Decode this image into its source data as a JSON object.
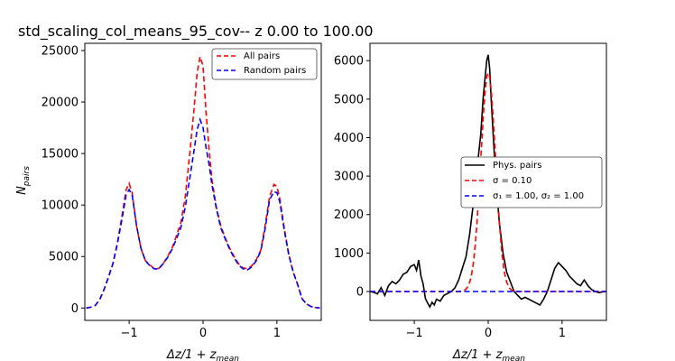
{
  "figure_title": "std_scaling_col_means_95_cov-- z 0.00 to 100.00",
  "chart_data": [
    {
      "type": "line",
      "panel": "left",
      "xlabel_tex": [
        "Δz/1 + z",
        "mean"
      ],
      "ylabel_tex": [
        "N",
        "pairs"
      ],
      "xlim": [
        -1.6,
        1.6
      ],
      "ylim": [
        -1200,
        25700
      ],
      "xticks": [
        -1,
        0,
        1
      ],
      "yticks": [
        0,
        5000,
        10000,
        15000,
        20000,
        25000
      ],
      "legend_loc": "upper right",
      "grid": false,
      "x": [
        -1.58,
        -1.52,
        -1.46,
        -1.4,
        -1.34,
        -1.28,
        -1.22,
        -1.16,
        -1.1,
        -1.04,
        -1.0,
        -0.96,
        -0.9,
        -0.84,
        -0.78,
        -0.72,
        -0.66,
        -0.6,
        -0.54,
        -0.48,
        -0.42,
        -0.36,
        -0.3,
        -0.24,
        -0.18,
        -0.12,
        -0.08,
        -0.04,
        0.0,
        0.04,
        0.08,
        0.12,
        0.18,
        0.24,
        0.3,
        0.36,
        0.42,
        0.48,
        0.54,
        0.6,
        0.66,
        0.72,
        0.78,
        0.84,
        0.9,
        0.96,
        1.0,
        1.04,
        1.1,
        1.16,
        1.22,
        1.28,
        1.34,
        1.4,
        1.46,
        1.52,
        1.58
      ],
      "series": [
        {
          "name": "All pairs",
          "color": "#ff0000",
          "dash": "dashed",
          "values": [
            0,
            80,
            250,
            800,
            1800,
            3000,
            4300,
            6300,
            8800,
            11500,
            12100,
            11200,
            8000,
            5800,
            4600,
            4200,
            3800,
            3850,
            4300,
            5000,
            5800,
            7000,
            8300,
            10800,
            15000,
            19500,
            22800,
            24400,
            23500,
            19000,
            15500,
            12500,
            9800,
            8000,
            6800,
            5800,
            5000,
            4300,
            3900,
            3800,
            4100,
            4700,
            5600,
            8000,
            10800,
            12000,
            11800,
            10600,
            7700,
            5200,
            3500,
            2300,
            900,
            400,
            150,
            50,
            0
          ]
        },
        {
          "name": "Random pairs",
          "color": "#0000ff",
          "dash": "dashed",
          "values": [
            0,
            80,
            250,
            800,
            1800,
            3000,
            4300,
            6200,
            8500,
            11000,
            11500,
            11000,
            8000,
            5800,
            4600,
            4100,
            3800,
            3800,
            4300,
            4900,
            5700,
            6700,
            7800,
            9800,
            12600,
            15400,
            17300,
            18300,
            17500,
            15600,
            14000,
            12000,
            9700,
            7800,
            6700,
            5700,
            4900,
            4200,
            3800,
            3700,
            4000,
            4600,
            5500,
            7700,
            10500,
            11300,
            11200,
            10300,
            7500,
            5200,
            3500,
            2300,
            900,
            400,
            150,
            50,
            0
          ]
        }
      ]
    },
    {
      "type": "line",
      "panel": "right",
      "xlabel_tex": [
        "Δz/1 + z",
        "mean"
      ],
      "xlim": [
        -1.6,
        1.6
      ],
      "ylim": [
        -750,
        6450
      ],
      "xticks": [
        -1,
        0,
        1
      ],
      "yticks": [
        0,
        1000,
        2000,
        3000,
        4000,
        5000,
        6000
      ],
      "legend_loc": "center right",
      "grid": false,
      "series": [
        {
          "name": "Phys. pairs",
          "color": "#000000",
          "dash": "solid",
          "x": [
            -1.6,
            -1.55,
            -1.5,
            -1.45,
            -1.4,
            -1.35,
            -1.3,
            -1.25,
            -1.2,
            -1.15,
            -1.1,
            -1.05,
            -1.0,
            -0.97,
            -0.94,
            -0.91,
            -0.88,
            -0.85,
            -0.82,
            -0.79,
            -0.76,
            -0.73,
            -0.7,
            -0.65,
            -0.6,
            -0.55,
            -0.5,
            -0.45,
            -0.4,
            -0.35,
            -0.3,
            -0.25,
            -0.2,
            -0.15,
            -0.1,
            -0.07,
            -0.04,
            -0.02,
            0.0,
            0.02,
            0.04,
            0.07,
            0.1,
            0.15,
            0.2,
            0.25,
            0.3,
            0.35,
            0.4,
            0.45,
            0.5,
            0.55,
            0.6,
            0.65,
            0.7,
            0.75,
            0.8,
            0.85,
            0.9,
            0.95,
            1.0,
            1.05,
            1.1,
            1.15,
            1.2,
            1.25,
            1.3,
            1.35,
            1.4,
            1.45,
            1.5,
            1.55,
            1.6
          ],
          "values": [
            0,
            -20,
            -60,
            100,
            -100,
            150,
            260,
            200,
            300,
            450,
            500,
            650,
            700,
            550,
            820,
            400,
            200,
            -180,
            -300,
            -400,
            -280,
            -350,
            -200,
            -250,
            -100,
            -50,
            0,
            100,
            300,
            600,
            900,
            1500,
            2300,
            3200,
            4100,
            5000,
            5600,
            6000,
            6150,
            5800,
            5000,
            4000,
            3000,
            1800,
            1000,
            500,
            250,
            0,
            -100,
            -200,
            -150,
            -200,
            -250,
            -300,
            -350,
            -200,
            0,
            300,
            600,
            750,
            650,
            550,
            400,
            300,
            200,
            150,
            300,
            150,
            50,
            0,
            -30,
            -10,
            0
          ]
        },
        {
          "name": "σ = 0.10",
          "color": "#ff0000",
          "dash": "dashed",
          "gauss": {
            "mu": 0,
            "sigma": 0.1,
            "amp": 5680
          },
          "x_range": [
            -1.6,
            1.6
          ]
        },
        {
          "name": "σ₁ = 1.00, σ₂ = 1.00",
          "color": "#0000ff",
          "dash": "dashed",
          "x": [
            -1.6,
            1.6
          ],
          "values": [
            0,
            0
          ]
        }
      ]
    }
  ],
  "legend_labels": {
    "all_pairs": "All pairs",
    "random_pairs": "Random pairs",
    "phys_pairs": "Phys. pairs",
    "sigma_fit": "σ =  0.10",
    "sigma12": "σ₁ =  1.00, σ₂ =  1.00"
  }
}
